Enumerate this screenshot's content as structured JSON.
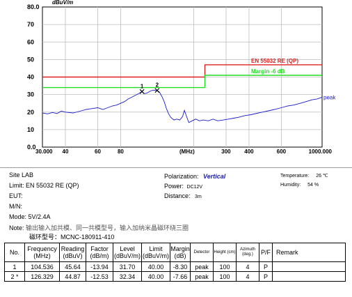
{
  "chart_data": {
    "type": "line",
    "y_unit": "dBuV/m",
    "y_ticks": [
      "80.0",
      "70",
      "60",
      "50",
      "40",
      "30",
      "20",
      "10",
      "0.0"
    ],
    "ylim": [
      0,
      80
    ],
    "x_ticks": [
      {
        "v": 30,
        "label": "30.000"
      },
      {
        "v": 40,
        "label": "40"
      },
      {
        "v": 60,
        "label": "60"
      },
      {
        "v": 80,
        "label": "80"
      },
      {
        "v": 300,
        "label": "300"
      },
      {
        "v": 400,
        "label": "400"
      },
      {
        "v": 600,
        "label": "600"
      },
      {
        "v": 1000,
        "label": "1000.000"
      }
    ],
    "x_unit": "(MHz)",
    "xlim": [
      30,
      1000
    ],
    "x_scale": "log",
    "grid": true,
    "limit_lines": [
      {
        "name": "EN 55032 RE (QP)",
        "color": "#e02020",
        "segments": [
          [
            30,
            230,
            40
          ],
          [
            230,
            1000,
            47
          ]
        ]
      },
      {
        "name": "Margin -6 dB",
        "color": "#22dd22",
        "segments": [
          [
            30,
            230,
            34
          ],
          [
            230,
            1000,
            41
          ]
        ]
      }
    ],
    "series": [
      {
        "name": "peak",
        "color": "#1a1acc",
        "points": [
          [
            30,
            19.5
          ],
          [
            32,
            19
          ],
          [
            34,
            19.8
          ],
          [
            36,
            19.2
          ],
          [
            38,
            20.5
          ],
          [
            40,
            20
          ],
          [
            44,
            19.5
          ],
          [
            48,
            20.5
          ],
          [
            52,
            21.5
          ],
          [
            56,
            22
          ],
          [
            60,
            22.5
          ],
          [
            64,
            21.5
          ],
          [
            68,
            22.5
          ],
          [
            72,
            23.5
          ],
          [
            76,
            24
          ],
          [
            80,
            25
          ],
          [
            84,
            26
          ],
          [
            88,
            27.5
          ],
          [
            92,
            28.5
          ],
          [
            96,
            29.5
          ],
          [
            100,
            30.5
          ],
          [
            104.5,
            31.7
          ],
          [
            108,
            30.5
          ],
          [
            112,
            31
          ],
          [
            116,
            32
          ],
          [
            120,
            32.5
          ],
          [
            126.3,
            32.3
          ],
          [
            130,
            31.5
          ],
          [
            134,
            29
          ],
          [
            138,
            26
          ],
          [
            142,
            22
          ],
          [
            146,
            19
          ],
          [
            150,
            17
          ],
          [
            156,
            15.5
          ],
          [
            162,
            16
          ],
          [
            168,
            15.5
          ],
          [
            174,
            17.5
          ],
          [
            178,
            21
          ],
          [
            182,
            18
          ],
          [
            188,
            14
          ],
          [
            196,
            15
          ],
          [
            205,
            16
          ],
          [
            215,
            15
          ],
          [
            225,
            15.5
          ],
          [
            240,
            15
          ],
          [
            255,
            16
          ],
          [
            270,
            15
          ],
          [
            290,
            15.5
          ],
          [
            310,
            16
          ],
          [
            330,
            16.5
          ],
          [
            350,
            17
          ],
          [
            380,
            18
          ],
          [
            410,
            18.5
          ],
          [
            450,
            19.5
          ],
          [
            500,
            20.5
          ],
          [
            550,
            21.5
          ],
          [
            600,
            22.5
          ],
          [
            650,
            23.5
          ],
          [
            700,
            24
          ],
          [
            760,
            25
          ],
          [
            820,
            26
          ],
          [
            880,
            27
          ],
          [
            940,
            27.5
          ],
          [
            1000,
            28.5
          ]
        ]
      }
    ],
    "markers": [
      {
        "label": "1",
        "x": 104.536,
        "y": 31.7
      },
      {
        "label": "2",
        "x": 126.329,
        "y": 32.34
      }
    ],
    "trace_label": "peak"
  },
  "info": {
    "site": "Site  LAB",
    "limit": "Limit:  EN 55032 RE (QP)",
    "eut": "EUT:",
    "mn": "M/N:",
    "mode": "Mode:  5V/2.4A",
    "note_label": "Note:",
    "note_cn": "输出输入加共模、同一共模型号，输入加纳米晶磁环绕三圈",
    "note_line2": "磁环型号：MCNC-180911-410",
    "polarization_label": "Polarization:",
    "polarization_value": "Vertical",
    "power_label": "Power:",
    "power_value": "DC12V",
    "distance_label": "Distance:",
    "distance_value": "3m",
    "temperature_label": "Temperature:",
    "temperature_value": "26 ℃",
    "humidity_label": "Humidity:",
    "humidity_value": "54 %"
  },
  "table": {
    "headers": [
      "No.",
      "Frequency (MHz)",
      "Reading (dBuV)",
      "Factor (dB/m)",
      "Level (dBuV/m)",
      "Limit (dBuV/m)",
      "Margin (dB)",
      "Detector",
      "Height (cm)",
      "Azimuth (deg.)",
      "P/F",
      "Remark"
    ],
    "rows": [
      [
        "1",
        "104.536",
        "45.64",
        "-13.94",
        "31.70",
        "40.00",
        "-8.30",
        "peak",
        "100",
        "4",
        "P",
        ""
      ],
      [
        "2 *",
        "126.329",
        "44.87",
        "-12.53",
        "32.34",
        "40.00",
        "-7.66",
        "peak",
        "100",
        "4",
        "P",
        ""
      ]
    ]
  }
}
